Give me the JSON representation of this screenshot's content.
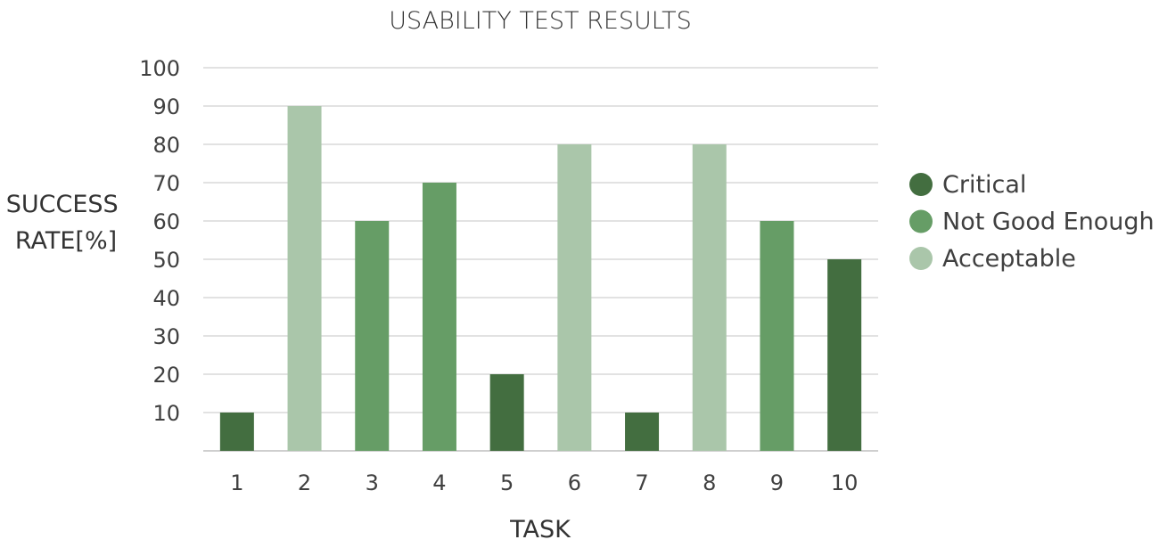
{
  "chart_data": {
    "type": "bar",
    "title": "USABILITY TEST RESULTS",
    "xlabel": "TASK",
    "ylabel_lines": [
      "SUCCESS",
      "RATE[%]"
    ],
    "categories": [
      "1",
      "2",
      "3",
      "4",
      "5",
      "6",
      "7",
      "8",
      "9",
      "10"
    ],
    "values": [
      10,
      90,
      60,
      70,
      20,
      80,
      10,
      80,
      60,
      50
    ],
    "value_class": [
      "Critical",
      "Acceptable",
      "Not Good Enough",
      "Not Good Enough",
      "Critical",
      "Acceptable",
      "Critical",
      "Acceptable",
      "Not Good Enough",
      "Critical"
    ],
    "ylim": [
      0,
      100
    ],
    "yticks": [
      10,
      20,
      30,
      40,
      50,
      60,
      70,
      80,
      90,
      100
    ],
    "grid": true,
    "legend_position": "right",
    "legend": [
      {
        "name": "Critical",
        "color": "#436e40"
      },
      {
        "name": "Not Good Enough",
        "color": "#669d66"
      },
      {
        "name": "Acceptable",
        "color": "#aac6aa"
      }
    ]
  }
}
